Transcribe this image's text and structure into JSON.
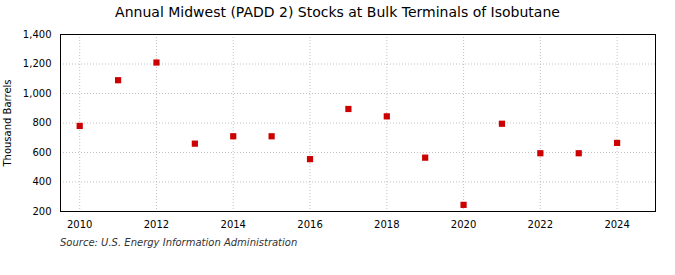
{
  "chart_data": {
    "type": "scatter",
    "title": "Annual Midwest (PADD 2) Stocks at Bulk Terminals of Isobutane",
    "y_label": "Thousand Barrels",
    "annotations": [
      "Source: U.S. Energy Information Administration"
    ],
    "x": [
      2010,
      2011,
      2012,
      2013,
      2014,
      2015,
      2016,
      2017,
      2018,
      2019,
      2020,
      2021,
      2022,
      2023,
      2024
    ],
    "values": [
      780,
      1090,
      1210,
      660,
      710,
      710,
      555,
      895,
      845,
      565,
      245,
      795,
      595,
      595,
      665
    ],
    "color": "#cc0000",
    "marker": "square",
    "xlim": [
      2009.5,
      2025.0
    ],
    "xticks": [
      2010,
      2012,
      2014,
      2016,
      2018,
      2020,
      2022,
      2024
    ],
    "ylim": [
      200,
      1400
    ],
    "yticks": [
      200,
      400,
      600,
      800,
      {
        "value": 1000,
        "label": "1,000"
      },
      {
        "value": 1200,
        "label": "1,200"
      },
      {
        "value": 1400,
        "label": "1,400"
      }
    ],
    "grid": true
  }
}
